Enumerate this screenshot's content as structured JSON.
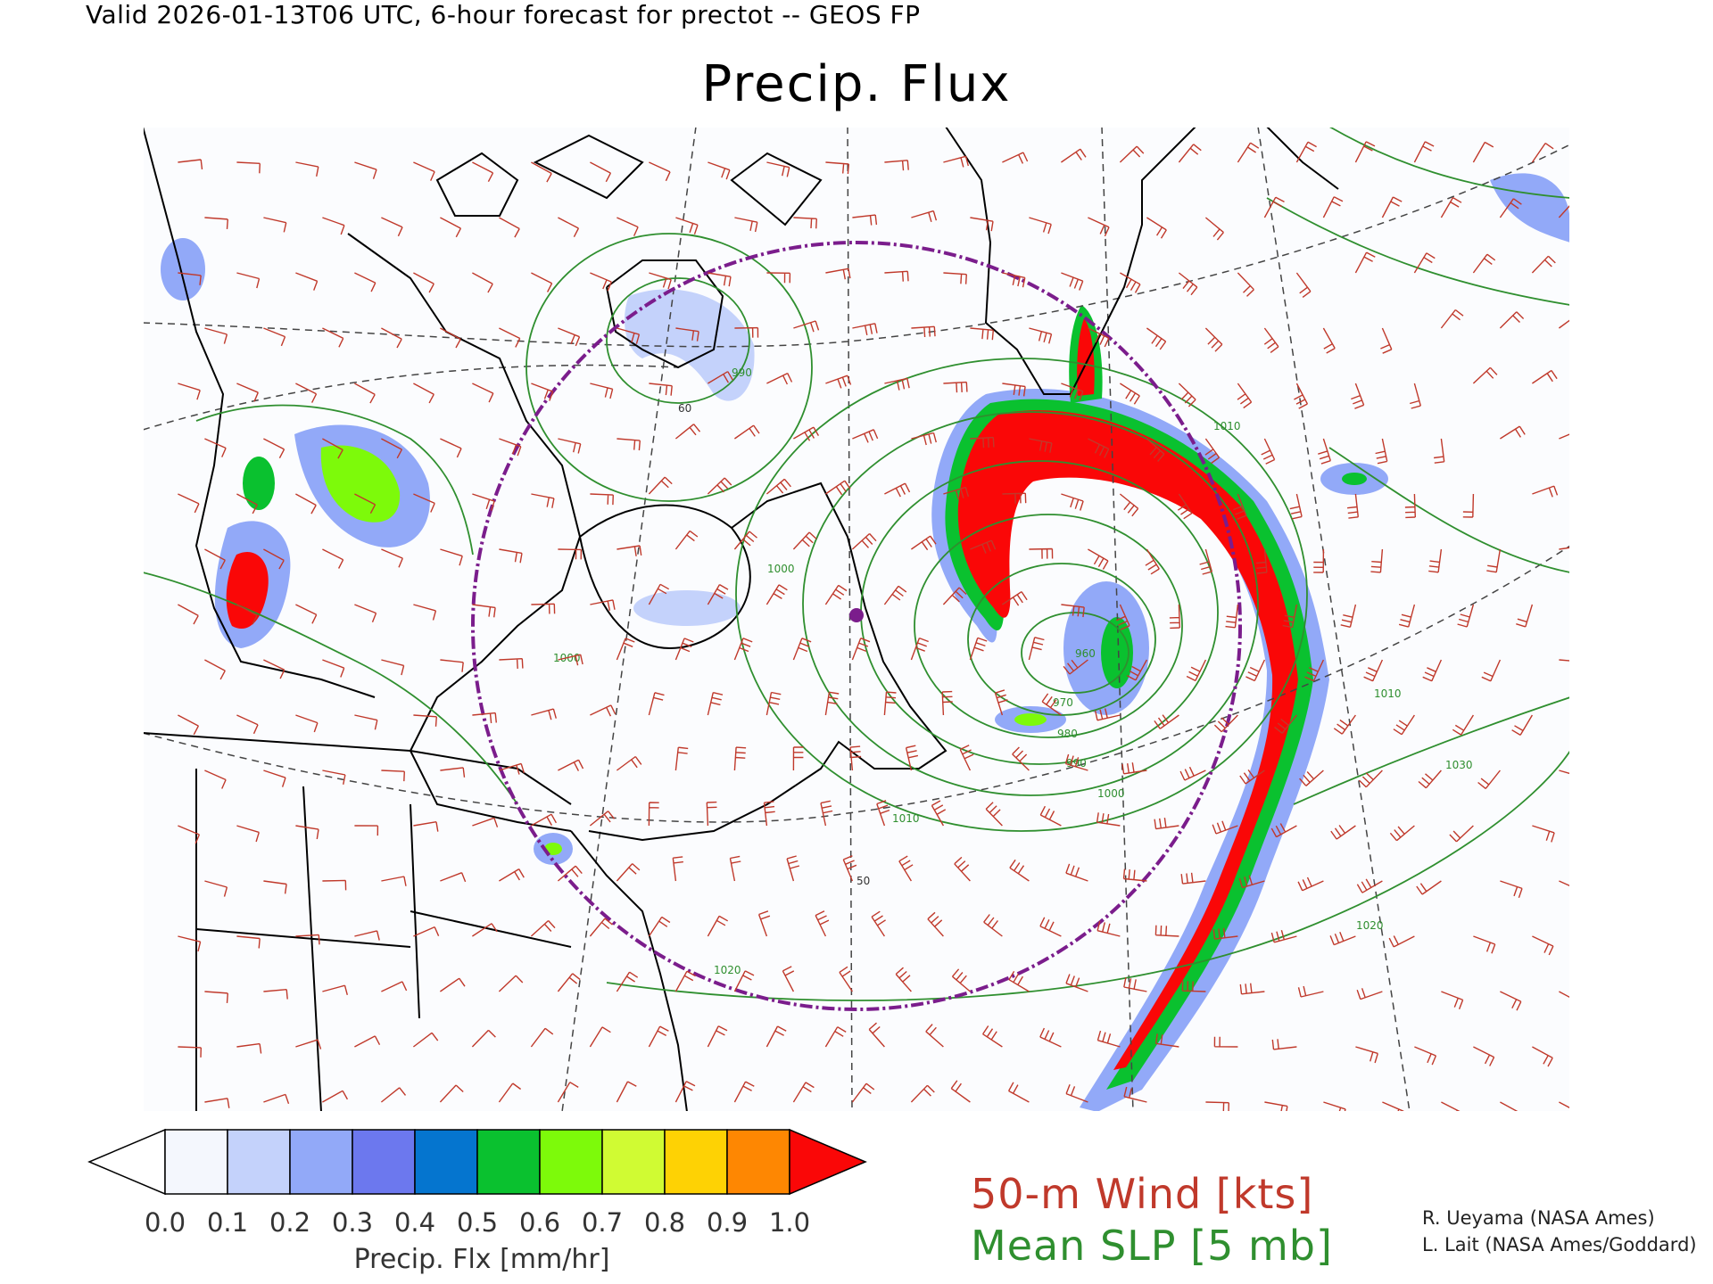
{
  "header": "Valid 2026-01-13T06 UTC, 6-hour forecast for prectot -- GEOS FP",
  "title": "Precip. Flux",
  "colorbar": {
    "ticks": [
      "0.0",
      "0.1",
      "0.2",
      "0.3",
      "0.4",
      "0.5",
      "0.6",
      "0.7",
      "0.8",
      "0.9",
      "1.0"
    ],
    "colors": [
      "#ffffff",
      "#f4f7fd",
      "#c4d2fb",
      "#92a9f8",
      "#6c78ee",
      "#0575cf",
      "#0ac12f",
      "#7dfa0a",
      "#d0fb33",
      "#fed204",
      "#fe8702",
      "#fa0707"
    ],
    "label": "Precip. Flx [mm/hr]"
  },
  "legend": {
    "wind": "50-m Wind [kts]",
    "slp": "Mean SLP [5 mb]"
  },
  "credits": [
    "R. Ueyama (NASA Ames)",
    "L. Lait (NASA Ames/Goddard)"
  ],
  "map": {
    "isobar_labels": [
      "960",
      "970",
      "980",
      "990",
      "1000",
      "1010",
      "1020",
      "1010",
      "1000",
      "990",
      "1000",
      "1010",
      "1020",
      "1030"
    ],
    "grid_labels": [
      "60",
      "50"
    ],
    "colors": {
      "isobar": "#2f8f2f",
      "wind_barb": "#c0392b",
      "coast": "#000000",
      "grid": "#444444",
      "range_circle": "#7b1d8c"
    }
  }
}
